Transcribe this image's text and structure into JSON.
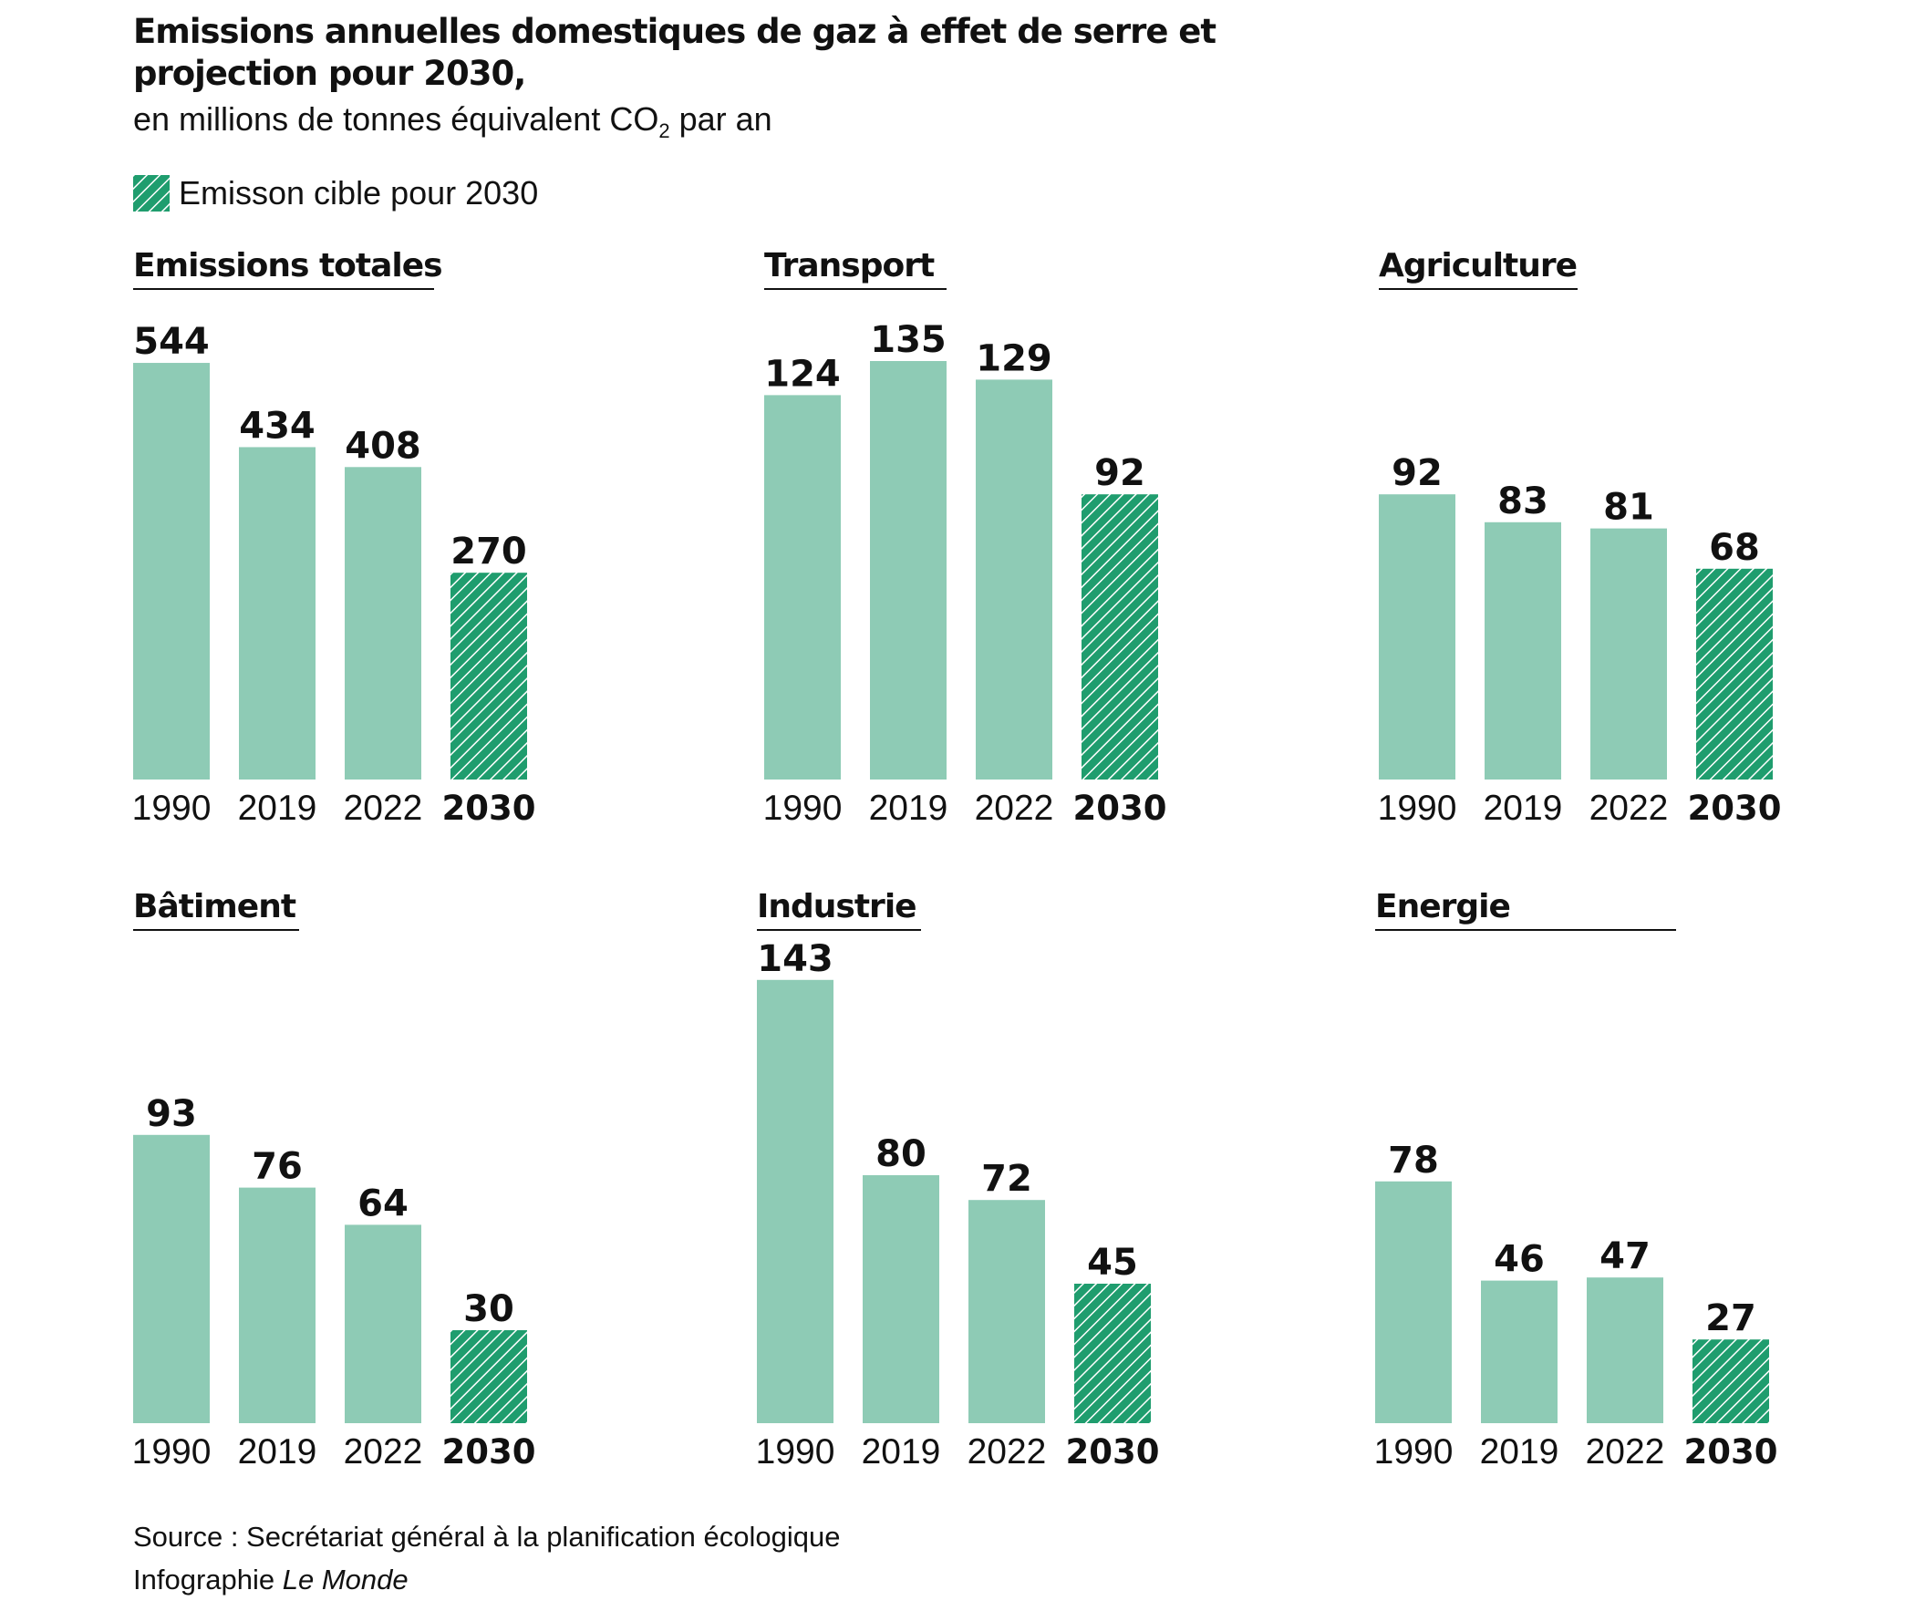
{
  "title": "Emissions annuelles domestiques de gaz à effet de serre et projection pour 2030,",
  "subtitle_prefix": "en millions de tonnes équivalent CO",
  "subtitle_sub": "2",
  "subtitle_suffix": " par an",
  "legend": {
    "label": "Emisson cible pour 2030"
  },
  "colors": {
    "bar": "#8ecbb5",
    "target": "#1f9d6e",
    "target_stripe": "#ffffff",
    "text": "#111111"
  },
  "source": "Source : Secrétariat général à la planification écologique",
  "credit_prefix": "Infographie ",
  "credit_brand": "Le Monde",
  "chart_data": [
    {
      "type": "bar",
      "title": "Emissions totales",
      "categories": [
        "1990",
        "2019",
        "2022",
        "2030"
      ],
      "values": [
        544,
        434,
        408,
        270
      ],
      "target_category": "2030"
    },
    {
      "type": "bar",
      "title": "Transport",
      "categories": [
        "1990",
        "2019",
        "2022",
        "2030"
      ],
      "values": [
        124,
        135,
        129,
        92
      ],
      "target_category": "2030"
    },
    {
      "type": "bar",
      "title": "Agriculture",
      "categories": [
        "1990",
        "2019",
        "2022",
        "2030"
      ],
      "values": [
        92,
        83,
        81,
        68
      ],
      "target_category": "2030"
    },
    {
      "type": "bar",
      "title": "Bâtiment",
      "categories": [
        "1990",
        "2019",
        "2022",
        "2030"
      ],
      "values": [
        93,
        76,
        64,
        30
      ],
      "target_category": "2030"
    },
    {
      "type": "bar",
      "title": "Industrie",
      "categories": [
        "1990",
        "2019",
        "2022",
        "2030"
      ],
      "values": [
        143,
        80,
        72,
        45
      ],
      "target_category": "2030"
    },
    {
      "type": "bar",
      "title": "Energie",
      "categories": [
        "1990",
        "2019",
        "2022",
        "2030"
      ],
      "values": [
        78,
        46,
        47,
        27
      ],
      "target_category": "2030"
    }
  ]
}
